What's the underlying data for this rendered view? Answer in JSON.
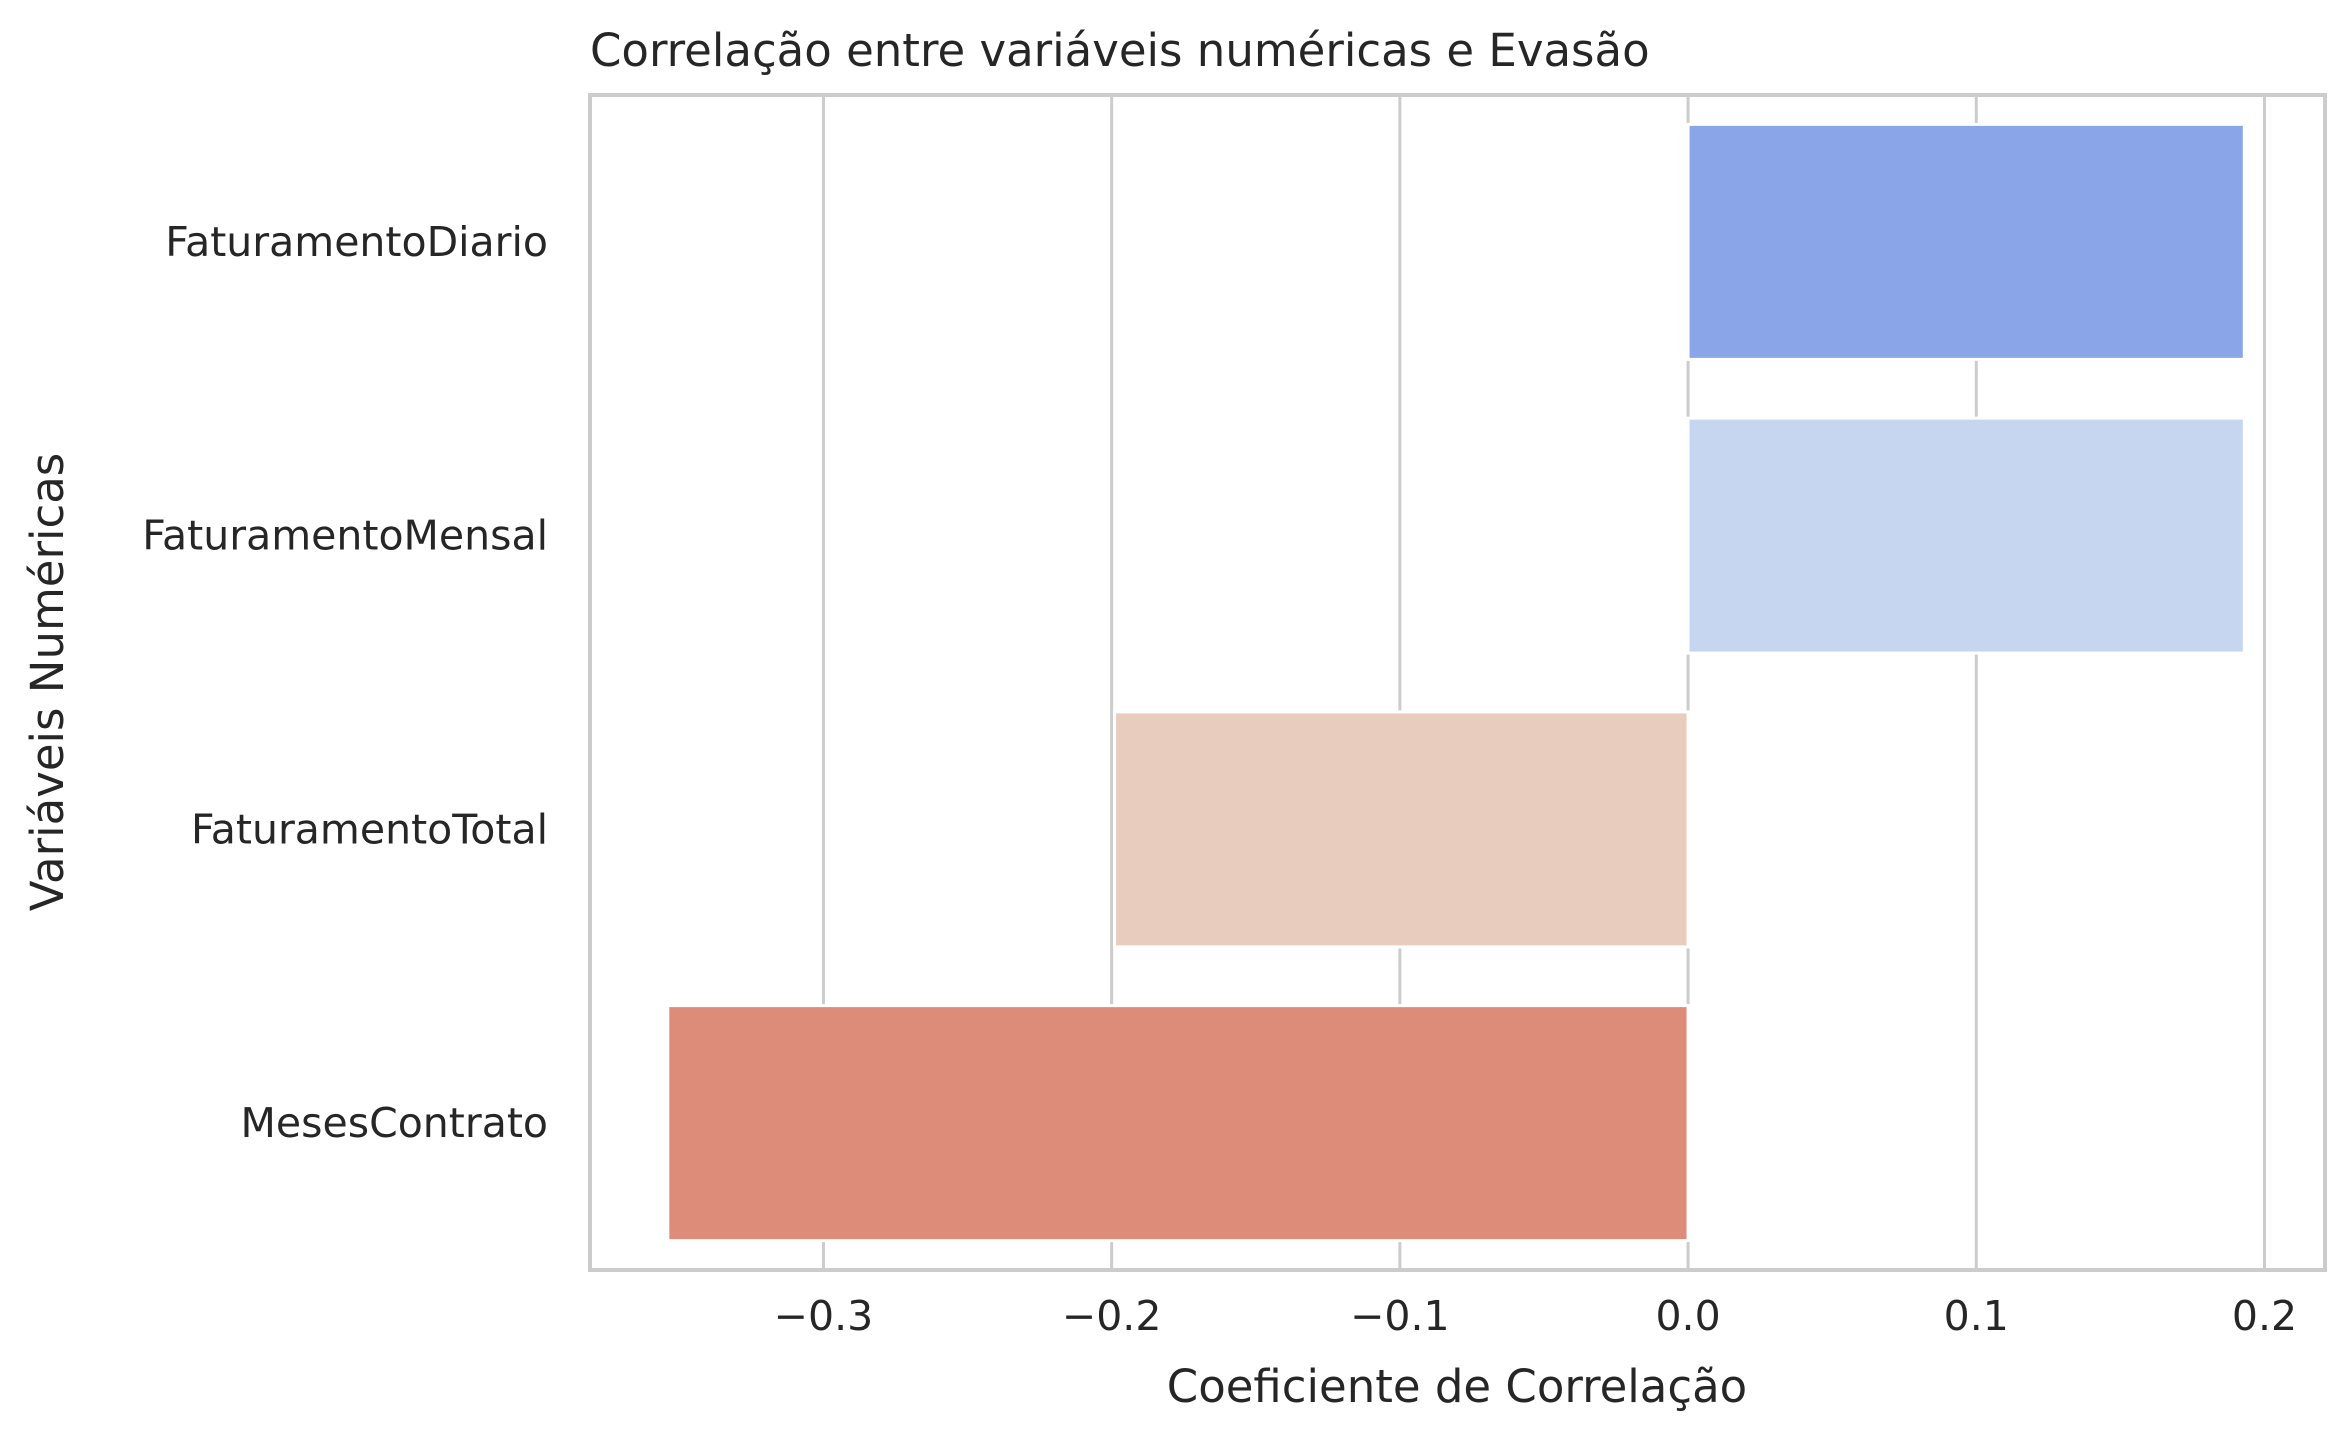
{
  "chart_data": {
    "type": "bar",
    "orientation": "horizontal",
    "title": "Correlação entre variáveis numéricas e Evasão",
    "xlabel": "Coeficiente de Correlação",
    "ylabel": "Variáveis Numéricas",
    "categories": [
      "FaturamentoDiario",
      "FaturamentoMensal",
      "FaturamentoTotal",
      "MesesContrato"
    ],
    "values": [
      0.193,
      0.193,
      -0.199,
      -0.354
    ],
    "colors": [
      "#8aa6e8",
      "#c6d6f0",
      "#e8cdbf",
      "#dc8c79"
    ],
    "xlim": [
      -0.381,
      0.221
    ],
    "xticks": [
      -0.3,
      -0.2,
      -0.1,
      0.0,
      0.1,
      0.2
    ],
    "xtick_labels": [
      "−0.3",
      "−0.2",
      "−0.1",
      "0.0",
      "0.1",
      "0.2"
    ],
    "grid": "vertical",
    "grid_color": "#cccccc"
  }
}
